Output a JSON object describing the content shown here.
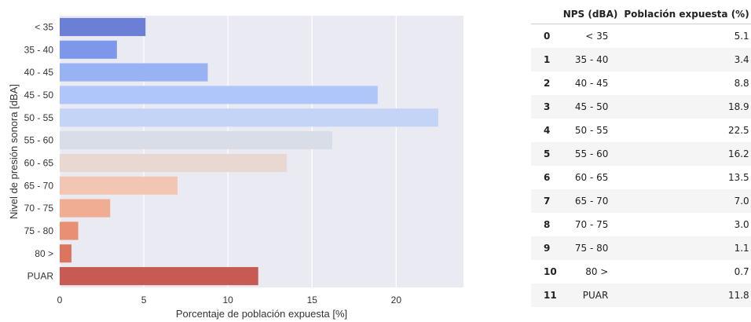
{
  "chart_data": {
    "type": "bar",
    "orientation": "horizontal",
    "categories": [
      "< 35",
      "35 - 40",
      "40 - 45",
      "45 - 50",
      "50 - 55",
      "55 - 60",
      "60 - 65",
      "65 - 70",
      "70 - 75",
      "75 - 80",
      "80 >",
      "PUAR"
    ],
    "values": [
      5.1,
      3.4,
      8.8,
      18.9,
      22.5,
      16.2,
      13.5,
      7.0,
      3.0,
      1.1,
      0.7,
      11.8
    ],
    "colors": [
      "#6c7fd6",
      "#7d97ea",
      "#98b2f3",
      "#aec6fa",
      "#c3d4f6",
      "#d8dde8",
      "#e8d8d1",
      "#f2c6b3",
      "#f0ad93",
      "#e88f74",
      "#dd755e",
      "#c85a54"
    ],
    "title": "",
    "xlabel": "Porcentaje de población expuesta [%]",
    "ylabel": "Nivel de presión sonora [dBA]",
    "xlim": [
      0,
      24
    ],
    "xticks": [
      0,
      5,
      10,
      15,
      20
    ],
    "grid": true,
    "background": "#eaeaf2"
  },
  "table": {
    "columns": [
      "NPS (dBA)",
      "Población expuesta (%)"
    ],
    "rows": [
      {
        "index": "0",
        "nps": "< 35",
        "pob": "5.1"
      },
      {
        "index": "1",
        "nps": "35 - 40",
        "pob": "3.4"
      },
      {
        "index": "2",
        "nps": "40 - 45",
        "pob": "8.8"
      },
      {
        "index": "3",
        "nps": "45 - 50",
        "pob": "18.9"
      },
      {
        "index": "4",
        "nps": "50 - 55",
        "pob": "22.5"
      },
      {
        "index": "5",
        "nps": "55 - 60",
        "pob": "16.2"
      },
      {
        "index": "6",
        "nps": "60 - 65",
        "pob": "13.5"
      },
      {
        "index": "7",
        "nps": "65 - 70",
        "pob": "7.0"
      },
      {
        "index": "8",
        "nps": "70 - 75",
        "pob": "3.0"
      },
      {
        "index": "9",
        "nps": "75 - 80",
        "pob": "1.1"
      },
      {
        "index": "10",
        "nps": "80 >",
        "pob": "0.7"
      },
      {
        "index": "11",
        "nps": "PUAR",
        "pob": "11.8"
      }
    ]
  }
}
